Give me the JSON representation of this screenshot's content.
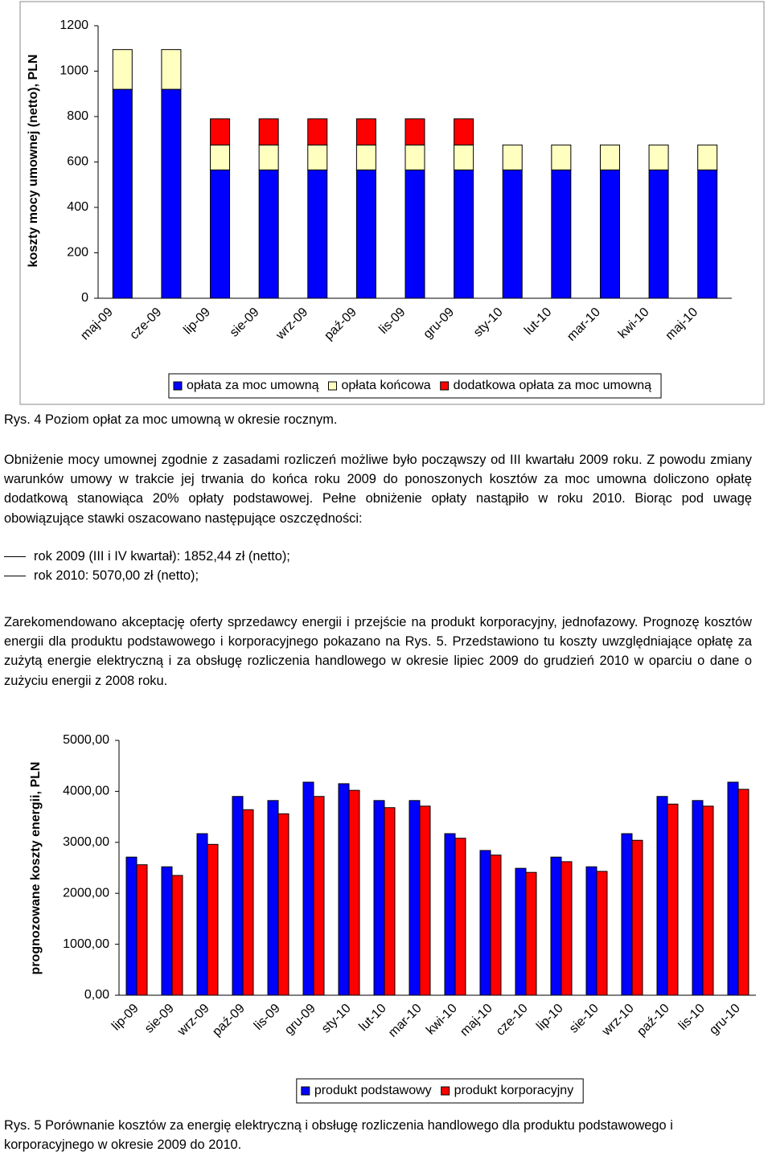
{
  "chart_data": [
    {
      "type": "stacked_bar",
      "y_label": "koszty mocy umownej (netto), PLN",
      "categories": [
        "maj-09",
        "cze-09",
        "lip-09",
        "sie-09",
        "wrz-09",
        "paź-09",
        "lis-09",
        "gru-09",
        "sty-10",
        "lut-10",
        "mar-10",
        "kwi-10",
        "maj-10"
      ],
      "series": [
        {
          "name": "opłata za moc umowną",
          "color": "#0000ff",
          "values": [
            920,
            920,
            565,
            565,
            565,
            565,
            565,
            565,
            565,
            565,
            565,
            565,
            565
          ]
        },
        {
          "name": "opłata końcowa",
          "color": "#ffffc0",
          "values": [
            175,
            175,
            110,
            110,
            110,
            110,
            110,
            110,
            110,
            110,
            110,
            110,
            110
          ]
        },
        {
          "name": "dodatkowa opłata za moc umowną",
          "color": "#ff0000",
          "values": [
            null,
            null,
            115,
            115,
            115,
            115,
            115,
            115,
            null,
            null,
            null,
            null,
            null
          ]
        }
      ],
      "ylim": [
        0,
        1200
      ],
      "yticks": [
        0,
        200,
        400,
        600,
        800,
        1000,
        1200
      ],
      "legend": "bottom"
    },
    {
      "type": "bar",
      "y_label": "prognozowane koszty energii, PLN",
      "categories": [
        "lip-09",
        "sie-09",
        "wrz-09",
        "paź-09",
        "lis-09",
        "gru-09",
        "sty-10",
        "lut-10",
        "mar-10",
        "kwi-10",
        "maj-10",
        "cze-10",
        "lip-10",
        "sie-10",
        "wrz-10",
        "paź-10",
        "lis-10",
        "gru-10"
      ],
      "series": [
        {
          "name": "produkt podstawowy",
          "color": "#0000ff",
          "values": [
            2710,
            2520,
            3170,
            3900,
            3820,
            4180,
            4150,
            3820,
            3820,
            3170,
            2840,
            2490,
            2710,
            2520,
            3170,
            3900,
            3820,
            4180
          ]
        },
        {
          "name": "produkt korporacyjny",
          "color": "#ff0000",
          "values": [
            2560,
            2350,
            2960,
            3640,
            3560,
            3900,
            4020,
            3680,
            3710,
            3080,
            2750,
            2410,
            2620,
            2430,
            3040,
            3750,
            3710,
            4040
          ]
        }
      ],
      "ylim": [
        0,
        5000
      ],
      "yticks": [
        {
          "value": 0,
          "label": "0,00"
        },
        {
          "value": 1000,
          "label": "1000,00"
        },
        {
          "value": 2000,
          "label": "2000,00"
        },
        {
          "value": 3000,
          "label": "3000,00"
        },
        {
          "value": 4000,
          "label": "4000,00"
        },
        {
          "value": 5000,
          "label": "5000,00"
        }
      ],
      "legend": "bottom"
    }
  ],
  "document": {
    "caption_1": "Rys. 4 Poziom opłat za moc umowną w okresie rocznym.",
    "paragraph_1": "Obniżenie mocy umownej zgodnie z zasadami rozliczeń możliwe było począwszy od III kwartału 2009 roku. Z powodu zmiany warunków umowy w trakcie jej trwania do końca roku 2009 do ponoszonych kosztów za moc umowna doliczono opłatę dodatkową stanowiąca 20% opłaty podstawowej. Pełne obniżenie opłaty nastąpiło w roku 2010. Biorąc pod uwagę obowiązujące stawki oszacowano następujące oszczędności:",
    "list": [
      "rok 2009 (III i IV kwartał): 1852,44 zł (netto);",
      "rok 2010: 5070,00 zł (netto);"
    ],
    "paragraph_2": "Zarekomendowano akceptację oferty sprzedawcy energii i przejście na produkt korporacyjny, jednofazowy. Prognozę kosztów energii dla produktu podstawowego i korporacyjnego pokazano na Rys. 5. Przedstawiono tu koszty uwzględniające opłatę za zużytą energie elektryczną i za obsługę rozliczenia handlowego w okresie lipiec 2009 do grudzień 2010 w oparciu o dane o zużyciu energii z 2008 roku.",
    "caption_2": "Rys. 5 Porównanie kosztów za energię elektryczną i obsługę rozliczenia handlowego dla produktu podstawowego i korporacyjnego w okresie 2009 do 2010."
  }
}
